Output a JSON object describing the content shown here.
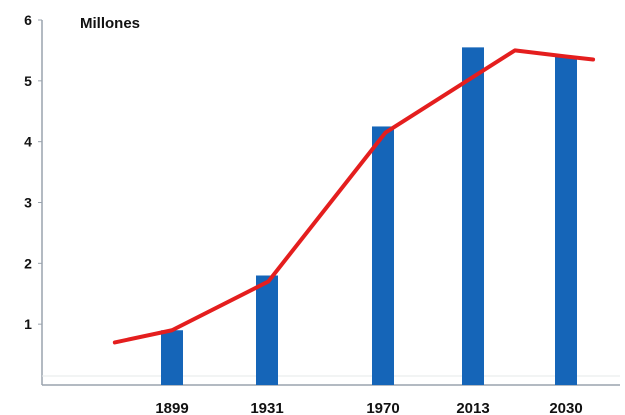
{
  "chart_data": {
    "type": "bar",
    "ylabel": "Millones",
    "categories": [
      "1899",
      "1931",
      "1970",
      "2013",
      "2030"
    ],
    "values": [
      0.9,
      1.8,
      4.25,
      5.55,
      5.4
    ],
    "line": {
      "x": [
        1880,
        1899,
        1931,
        1970,
        2013,
        2030,
        2039
      ],
      "y": [
        0.7,
        0.9,
        1.7,
        4.15,
        5.5,
        5.4,
        5.35
      ]
    },
    "ylim": [
      0,
      6
    ],
    "yticks": [
      "1",
      "2",
      "3",
      "4",
      "5",
      "6"
    ],
    "colors": {
      "bar": "#1565b8",
      "line": "#e41e1e",
      "axis": "#9aa3ad"
    }
  }
}
